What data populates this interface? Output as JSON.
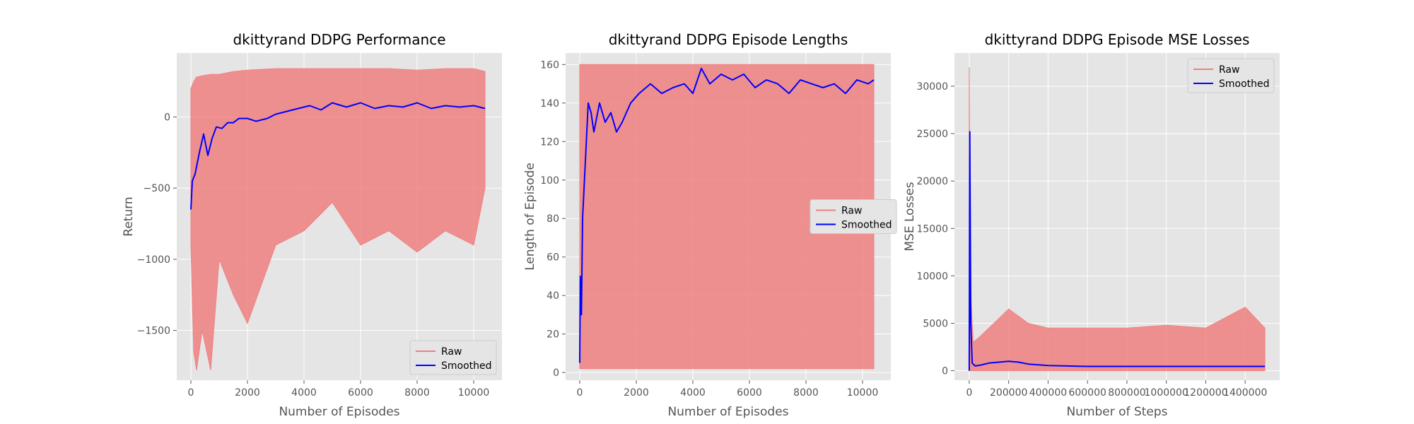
{
  "colors": {
    "raw": "#f08080",
    "smoothed": "#0000ff",
    "panel_bg": "#e5e5e5",
    "grid": "#ffffff",
    "tick": "#555555"
  },
  "chart_data": [
    {
      "type": "line",
      "title": "dkittyrand DDPG Performance",
      "xlabel": "Number of Episodes",
      "ylabel": "Return",
      "xlim": [
        -500,
        11000
      ],
      "ylim": [
        -1850,
        450
      ],
      "xticks": [
        0,
        2000,
        4000,
        6000,
        8000,
        10000
      ],
      "yticks": [
        -1500,
        -1000,
        -500,
        0
      ],
      "grid": true,
      "legend_loc": "lower-right",
      "series": [
        {
          "name": "Raw",
          "style": "band",
          "x": [
            0,
            100,
            200,
            400,
            700,
            1000,
            1500,
            2000,
            3000,
            4000,
            5000,
            6000,
            7000,
            8000,
            9000,
            10000,
            10400
          ],
          "upper": [
            200,
            250,
            280,
            290,
            300,
            300,
            320,
            330,
            340,
            340,
            340,
            340,
            340,
            330,
            340,
            340,
            320
          ],
          "lower": [
            -900,
            -1650,
            -1780,
            -1500,
            -1780,
            -1000,
            -1250,
            -1450,
            -900,
            -800,
            -600,
            -900,
            -800,
            -950,
            -800,
            -900,
            -500
          ]
        },
        {
          "name": "Smoothed",
          "x": [
            0,
            50,
            150,
            300,
            450,
            600,
            750,
            900,
            1100,
            1300,
            1500,
            1700,
            2000,
            2300,
            2700,
            3000,
            3400,
            3800,
            4200,
            4600,
            5000,
            5500,
            6000,
            6500,
            7000,
            7500,
            8000,
            8500,
            9000,
            9500,
            10000,
            10400
          ],
          "y": [
            -650,
            -450,
            -400,
            -250,
            -120,
            -270,
            -150,
            -70,
            -80,
            -40,
            -40,
            -10,
            -10,
            -30,
            -10,
            20,
            40,
            60,
            80,
            50,
            100,
            70,
            100,
            60,
            80,
            70,
            100,
            60,
            80,
            70,
            80,
            60
          ]
        }
      ]
    },
    {
      "type": "line",
      "title": "dkittyrand DDPG Episode Lengths",
      "xlabel": "Number of Episodes",
      "ylabel": "Length of Episode",
      "xlim": [
        -500,
        11000
      ],
      "ylim": [
        -4,
        166
      ],
      "xticks": [
        0,
        2000,
        4000,
        6000,
        8000,
        10000
      ],
      "yticks": [
        0,
        20,
        40,
        60,
        80,
        100,
        120,
        140,
        160
      ],
      "grid": true,
      "legend_loc": "center-right",
      "series": [
        {
          "name": "Raw",
          "style": "band",
          "x": [
            0,
            10400
          ],
          "upper": [
            160,
            160
          ],
          "lower": [
            2,
            2
          ]
        },
        {
          "name": "Smoothed",
          "x": [
            0,
            20,
            60,
            100,
            200,
            300,
            400,
            500,
            700,
            900,
            1100,
            1300,
            1500,
            1800,
            2100,
            2500,
            2900,
            3300,
            3700,
            4000,
            4300,
            4600,
            5000,
            5400,
            5800,
            6200,
            6600,
            7000,
            7400,
            7800,
            8200,
            8600,
            9000,
            9400,
            9800,
            10200,
            10400
          ],
          "y": [
            5,
            50,
            30,
            80,
            110,
            140,
            135,
            125,
            140,
            130,
            135,
            125,
            130,
            140,
            145,
            150,
            145,
            148,
            150,
            145,
            158,
            150,
            155,
            152,
            155,
            148,
            152,
            150,
            145,
            152,
            150,
            148,
            150,
            145,
            152,
            150,
            152
          ]
        }
      ]
    },
    {
      "type": "line",
      "title": "dkittyrand DDPG Episode MSE Losses",
      "xlabel": "Number of Steps",
      "ylabel": "MSE Losses",
      "xlim": [
        -75000,
        1575000
      ],
      "ylim": [
        -1000,
        33500
      ],
      "xticks": [
        0,
        200000,
        400000,
        600000,
        800000,
        1000000,
        1200000,
        1400000
      ],
      "yticks": [
        0,
        5000,
        10000,
        15000,
        20000,
        25000,
        30000
      ],
      "grid": true,
      "legend_loc": "top-right",
      "series": [
        {
          "name": "Raw",
          "style": "band",
          "x": [
            0,
            5000,
            20000,
            50000,
            100000,
            150000,
            200000,
            300000,
            400000,
            600000,
            800000,
            1000000,
            1200000,
            1400000,
            1500000
          ],
          "upper": [
            32000,
            9000,
            3000,
            3500,
            4500,
            5500,
            6500,
            5000,
            4500,
            4500,
            4500,
            4800,
            4500,
            6700,
            4500
          ],
          "lower": [
            0,
            0,
            0,
            0,
            0,
            0,
            0,
            0,
            0,
            0,
            0,
            0,
            0,
            0,
            0
          ]
        },
        {
          "name": "Smoothed",
          "x": [
            0,
            3000,
            8000,
            15000,
            30000,
            60000,
            100000,
            150000,
            200000,
            250000,
            300000,
            400000,
            500000,
            600000,
            800000,
            1000000,
            1200000,
            1400000,
            1500000
          ],
          "y": [
            0,
            25200,
            5000,
            800,
            500,
            600,
            800,
            900,
            1000,
            900,
            700,
            550,
            500,
            450,
            450,
            450,
            450,
            450,
            450
          ]
        }
      ]
    }
  ]
}
